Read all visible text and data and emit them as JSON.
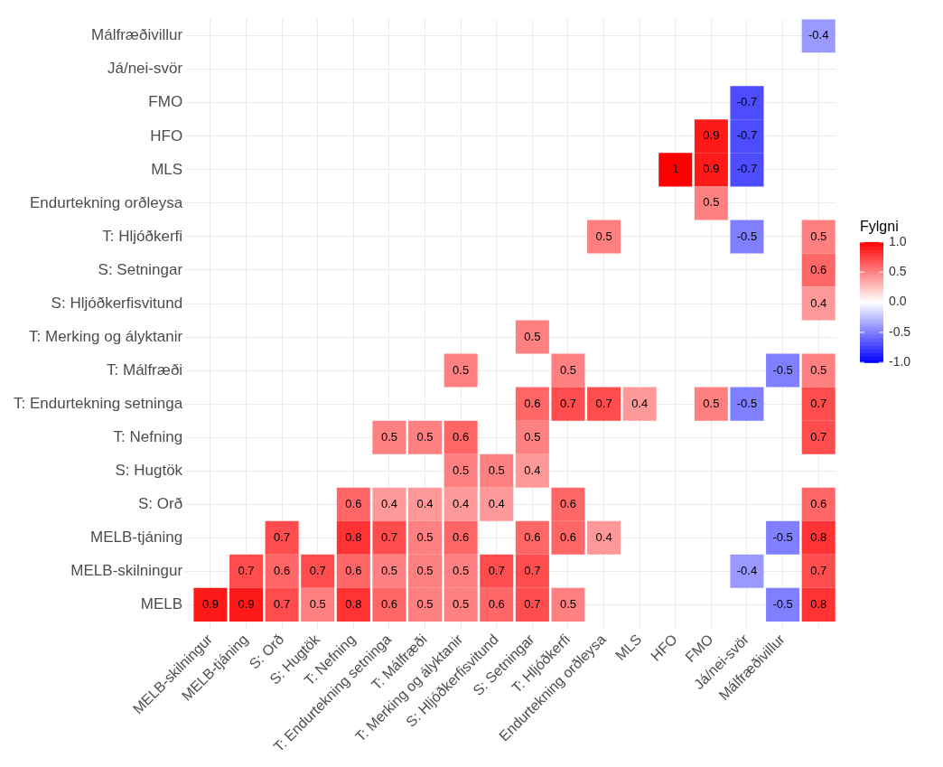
{
  "chart_data": {
    "type": "heatmap",
    "clabel": "Fylgni",
    "categories": [
      "MELB-skilningur",
      "MELB-tjáning",
      "S: Orð",
      "S: Hugtök",
      "T: Nefning",
      "T: Endurtekning setninga",
      "T: Málfræði",
      "T: Merking og ályktanir",
      "S: Hljóðkerfisvitund",
      "S: Setningar",
      "T: Hljóðkerfi",
      "Endurtekning orðleysa",
      "MLS",
      "HFO",
      "FMO",
      "Já/nei-svör",
      "Málfræðivillur",
      null
    ],
    "y_categories": [
      "Málfræðivillur",
      "Já/nei-svör",
      "FMO",
      "HFO",
      "MLS",
      "Endurtekning orðleysa",
      "T: Hljóðkerfi",
      "S: Setningar",
      "S: Hljóðkerfisvitund",
      "T: Merking og ályktanir",
      "T: Málfræði",
      "T: Endurtekning setninga",
      "T: Nefning",
      "S: Hugtök",
      "S: Orð",
      "MELB-tjáning",
      "MELB-skilningur",
      "MELB"
    ],
    "cells": [
      [
        null,
        null,
        null,
        null,
        null,
        null,
        null,
        null,
        null,
        null,
        null,
        null,
        null,
        null,
        null,
        null,
        null,
        -0.4
      ],
      [
        null,
        null,
        null,
        null,
        null,
        null,
        null,
        null,
        null,
        null,
        null,
        null,
        null,
        null,
        null,
        null,
        null,
        null
      ],
      [
        null,
        null,
        null,
        null,
        null,
        null,
        null,
        null,
        null,
        null,
        null,
        null,
        null,
        null,
        null,
        -0.7,
        null,
        null
      ],
      [
        null,
        null,
        null,
        null,
        null,
        null,
        null,
        null,
        null,
        null,
        null,
        null,
        null,
        null,
        0.9,
        -0.7,
        null,
        null
      ],
      [
        null,
        null,
        null,
        null,
        null,
        null,
        null,
        null,
        null,
        null,
        null,
        null,
        null,
        1,
        0.9,
        -0.7,
        null,
        null
      ],
      [
        null,
        null,
        null,
        null,
        null,
        null,
        null,
        null,
        null,
        null,
        null,
        null,
        null,
        null,
        0.5,
        null,
        null,
        null
      ],
      [
        null,
        null,
        null,
        null,
        null,
        null,
        null,
        null,
        null,
        null,
        null,
        0.5,
        null,
        null,
        null,
        -0.5,
        null,
        0.5
      ],
      [
        null,
        null,
        null,
        null,
        null,
        null,
        null,
        null,
        null,
        null,
        null,
        null,
        null,
        null,
        null,
        null,
        null,
        0.6
      ],
      [
        null,
        null,
        null,
        null,
        null,
        null,
        null,
        null,
        null,
        null,
        null,
        null,
        null,
        null,
        null,
        null,
        null,
        0.4
      ],
      [
        null,
        null,
        null,
        null,
        null,
        null,
        null,
        null,
        null,
        0.5,
        null,
        null,
        null,
        null,
        null,
        null,
        null,
        null
      ],
      [
        null,
        null,
        null,
        null,
        null,
        null,
        null,
        0.5,
        null,
        null,
        0.5,
        null,
        null,
        null,
        null,
        null,
        -0.5,
        0.5
      ],
      [
        null,
        null,
        null,
        null,
        null,
        null,
        null,
        null,
        null,
        0.6,
        0.7,
        0.7,
        0.4,
        null,
        0.5,
        -0.5,
        null,
        0.7
      ],
      [
        null,
        null,
        null,
        null,
        null,
        0.5,
        0.5,
        0.6,
        null,
        0.5,
        null,
        null,
        null,
        null,
        null,
        null,
        null,
        0.7
      ],
      [
        null,
        null,
        null,
        null,
        null,
        null,
        null,
        0.5,
        0.5,
        0.4,
        null,
        null,
        null,
        null,
        null,
        null,
        null,
        null
      ],
      [
        null,
        null,
        null,
        null,
        0.6,
        0.4,
        0.4,
        0.4,
        0.4,
        null,
        0.6,
        null,
        null,
        null,
        null,
        null,
        null,
        0.6
      ],
      [
        null,
        null,
        0.7,
        null,
        0.8,
        0.7,
        0.5,
        0.6,
        null,
        0.6,
        0.6,
        0.4,
        null,
        null,
        null,
        null,
        -0.5,
        0.8
      ],
      [
        null,
        0.7,
        0.6,
        0.7,
        0.6,
        0.5,
        0.5,
        0.5,
        0.7,
        0.7,
        null,
        null,
        null,
        null,
        null,
        -0.4,
        null,
        0.7
      ],
      [
        0.9,
        0.9,
        0.7,
        0.5,
        0.8,
        0.6,
        0.5,
        0.5,
        0.6,
        0.7,
        0.5,
        null,
        null,
        null,
        null,
        null,
        -0.5,
        0.8
      ]
    ],
    "clim": [
      -1,
      1
    ],
    "cticks": [
      {
        "value": 1,
        "label": "1.0"
      },
      {
        "value": 0.5,
        "label": "0.5"
      },
      {
        "value": 0,
        "label": "0.0"
      },
      {
        "value": -0.5,
        "label": "-0.5"
      },
      {
        "value": -1,
        "label": "-1.0"
      }
    ],
    "data_labels": true,
    "grid": true
  }
}
